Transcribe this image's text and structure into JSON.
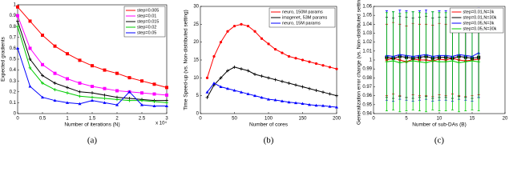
{
  "chart_data": [
    {
      "type": "line",
      "caption": "(a)",
      "xlabel": "Number of iterations (N)",
      "ylabel": "Expected gradients",
      "x_multiplier": "x 10⁴",
      "x": [
        0,
        0.25,
        0.5,
        0.75,
        1,
        1.25,
        1.5,
        1.75,
        2,
        2.25,
        2.5,
        2.75,
        3
      ],
      "xlim": [
        0,
        3
      ],
      "ylim": [
        0,
        1
      ],
      "xticks": [
        0,
        0.5,
        1,
        1.5,
        2,
        2.5,
        3
      ],
      "yticks": [
        0,
        0.1,
        0.2,
        0.3,
        0.4,
        0.5,
        0.6,
        0.7,
        0.8,
        0.9,
        1
      ],
      "legend": "upper right",
      "grid": false,
      "series": [
        {
          "name": "step=0.005",
          "color": "#ff0000",
          "marker": "s",
          "values": [
            0.98,
            0.85,
            0.72,
            0.62,
            0.55,
            0.49,
            0.44,
            0.4,
            0.37,
            0.33,
            0.3,
            0.27,
            0.24
          ]
        },
        {
          "name": "step=0.01",
          "color": "#ff00ff",
          "marker": "s",
          "values": [
            0.9,
            0.6,
            0.45,
            0.37,
            0.32,
            0.28,
            0.25,
            0.23,
            0.21,
            0.2,
            0.19,
            0.18,
            0.17
          ]
        },
        {
          "name": "step=0.015",
          "color": "#000000",
          "marker": "+",
          "values": [
            0.85,
            0.5,
            0.35,
            0.28,
            0.24,
            0.2,
            0.19,
            0.17,
            0.15,
            0.14,
            0.13,
            0.12,
            0.12
          ]
        },
        {
          "name": "step=0.02",
          "color": "#00cc00",
          "marker": "+",
          "values": [
            0.8,
            0.42,
            0.28,
            0.22,
            0.19,
            0.16,
            0.15,
            0.14,
            0.13,
            0.12,
            0.12,
            0.11,
            0.1
          ]
        },
        {
          "name": "step=0.05",
          "color": "#0000ff",
          "marker": "^",
          "values": [
            0.6,
            0.25,
            0.15,
            0.12,
            0.1,
            0.09,
            0.12,
            0.1,
            0.08,
            0.2,
            0.08,
            0.07,
            0.07
          ]
        }
      ]
    },
    {
      "type": "line",
      "caption": "(b)",
      "xlabel": "Number of cores",
      "ylabel": "Time Speed-up (vs. Non-distributed setting)",
      "x": [
        10,
        20,
        30,
        40,
        50,
        60,
        70,
        80,
        90,
        100,
        110,
        120,
        130,
        140,
        150,
        160,
        170,
        180,
        190,
        200
      ],
      "xlim": [
        0,
        200
      ],
      "ylim": [
        0,
        30
      ],
      "xticks": [
        0,
        50,
        100,
        150,
        200
      ],
      "yticks": [
        0,
        5,
        10,
        15,
        20,
        25,
        30
      ],
      "legend": "upper right",
      "grid": false,
      "series": [
        {
          "name": "neuro, 150M params",
          "color": "#ff0000",
          "marker": "o",
          "values": [
            10,
            16,
            20,
            23,
            24.5,
            25,
            24.5,
            23,
            21,
            19.5,
            18,
            17,
            16,
            15.5,
            15,
            14.5,
            14,
            13.5,
            13,
            12.5
          ]
        },
        {
          "name": "imagenet, 53M params",
          "color": "#000000",
          "marker": "+",
          "values": [
            4.5,
            8,
            10,
            12,
            13,
            12.5,
            12,
            11,
            10.5,
            10,
            9.5,
            9,
            8.5,
            8,
            7.5,
            7,
            6.5,
            6,
            5.5,
            5
          ]
        },
        {
          "name": "neuro, 15M params",
          "color": "#0000ff",
          "marker": "^",
          "values": [
            6,
            8.5,
            7.5,
            7,
            6.5,
            6,
            5.5,
            5,
            4.5,
            4,
            3.8,
            3.5,
            3.2,
            3,
            2.8,
            2.5,
            2.3,
            2.2,
            2,
            1.8
          ]
        }
      ]
    },
    {
      "type": "errorbar",
      "caption": "(c)",
      "xlabel": "Number of sub-DAs (B)",
      "ylabel": "Generalization error change (vs. Non-distributed setting)",
      "x": [
        2,
        3,
        4,
        5,
        6,
        7,
        8,
        9,
        10,
        11,
        12,
        13,
        14,
        15,
        16
      ],
      "xlim": [
        0,
        20
      ],
      "ylim": [
        0.94,
        1.06
      ],
      "xticks": [
        0,
        5,
        10,
        15,
        20
      ],
      "yticks": [
        0.94,
        0.95,
        0.96,
        0.97,
        0.98,
        0.99,
        1,
        1.01,
        1.02,
        1.03,
        1.04,
        1.05,
        1.06
      ],
      "legend": "upper right",
      "grid": false,
      "series": [
        {
          "name": "step=0.01,N=3k",
          "color": "#ff0000",
          "marker": "o",
          "values": [
            1,
            1.002,
            1,
            0.998,
            1.001,
            1,
            1,
            0.999,
            1.001,
            1,
            1.002,
            1,
            0.999,
            1,
            1.001
          ],
          "errors": [
            0.04,
            0.04,
            0.04,
            0.04,
            0.04,
            0.04,
            0.04,
            0.04,
            0.04,
            0.04,
            0.04,
            0.04,
            0.04,
            0.04,
            0.04
          ]
        },
        {
          "name": "step=0.01,N=30k",
          "color": "#000000",
          "marker": "s",
          "values": [
            1.003,
            1.002,
            1.004,
            1.003,
            1.002,
            1.003,
            1.004,
            1.002,
            1.003,
            1.003,
            1.002,
            1.004,
            1.003,
            1.002,
            1.003
          ],
          "errors": [
            0.045,
            0.045,
            0.045,
            0.045,
            0.045,
            0.045,
            0.045,
            0.045,
            0.045,
            0.045,
            0.045,
            0.045,
            0.045,
            0.045,
            0.045
          ]
        },
        {
          "name": "step=0.05,N=3k",
          "color": "#0000ff",
          "marker": "^",
          "values": [
            1.005,
            1.004,
            1.006,
            1.005,
            1.004,
            1.005,
            1.006,
            1.004,
            1.005,
            1.005,
            1.004,
            1.006,
            1.005,
            1.004,
            1.008
          ],
          "errors": [
            0.05,
            0.05,
            0.05,
            0.05,
            0.05,
            0.05,
            0.05,
            0.05,
            0.05,
            0.05,
            0.05,
            0.05,
            0.05,
            0.05,
            0.05
          ]
        },
        {
          "name": "step=0.05,N=30k",
          "color": "#00cc00",
          "marker": "+",
          "values": [
            0.998,
            0.999,
            0.997,
            0.998,
            0.999,
            0.998,
            0.997,
            0.999,
            0.998,
            0.998,
            0.999,
            0.997,
            0.998,
            0.999,
            0.998
          ],
          "errors": [
            0.055,
            0.055,
            0.055,
            0.055,
            0.055,
            0.055,
            0.055,
            0.055,
            0.055,
            0.055,
            0.055,
            0.055,
            0.055,
            0.055,
            0.055
          ]
        }
      ]
    }
  ]
}
